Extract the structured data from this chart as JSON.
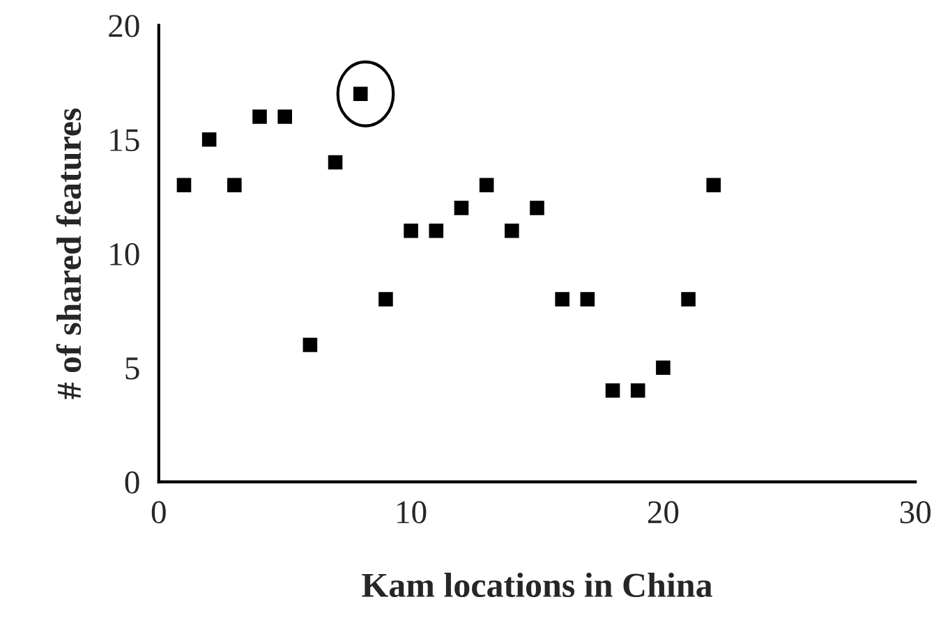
{
  "chart_data": {
    "type": "scatter",
    "xlabel": "Kam locations in China",
    "ylabel": "# of shared features",
    "x": [
      1,
      2,
      3,
      4,
      5,
      6,
      7,
      8,
      9,
      10,
      11,
      12,
      13,
      14,
      15,
      16,
      17,
      18,
      19,
      20,
      21,
      22
    ],
    "series": [
      {
        "color": "#000000",
        "values": [
          13,
          15,
          13,
          16,
          16,
          6,
          14,
          17,
          8,
          11,
          11,
          12,
          13,
          11,
          12,
          8,
          8,
          4,
          4,
          5,
          8,
          13
        ]
      }
    ],
    "xlim": [
      0,
      30
    ],
    "xticks": [
      0,
      10,
      20,
      30
    ],
    "ylim": [
      0,
      20
    ],
    "yticks": [
      0,
      5,
      10,
      15,
      20
    ],
    "marker": "square",
    "grid": false,
    "legend": false
  }
}
